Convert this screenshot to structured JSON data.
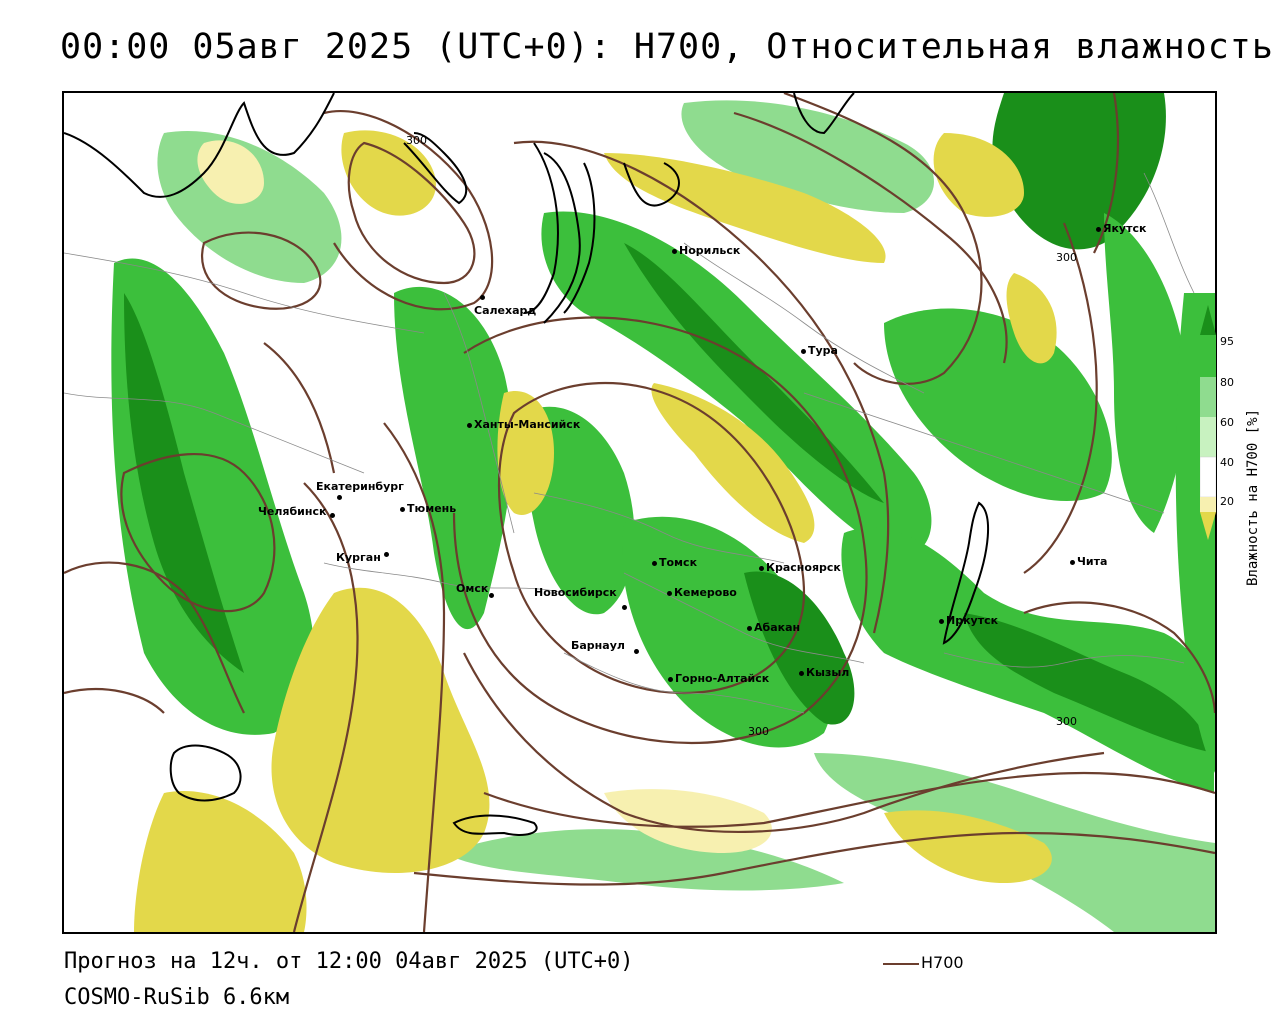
{
  "title": "00:00 05авг 2025 (UTC+0): Н700, Относительная влажность",
  "forecast_text": "Прогноз на 12ч. от 12:00 04авг 2025 (UTC+0)",
  "model_text": "COSMO-RuSib 6.6км",
  "line_legend_label": "Н700",
  "legend": {
    "title": "Влажность на Н700 [%]",
    "ticks": [
      "95",
      "80",
      "60",
      "40",
      "20"
    ],
    "colors": [
      "#1a8f1a",
      "#3cbf3c",
      "#8fdc8f",
      "#c8f2c0",
      "#ffffff",
      "#f7f0b0",
      "#e3d84a",
      "#c9b820"
    ]
  },
  "isoline_labels": [
    "300",
    "300",
    "300",
    "300"
  ],
  "cities": [
    {
      "name": "Якутск"
    },
    {
      "name": "Норильск"
    },
    {
      "name": "Салехард"
    },
    {
      "name": "Тура"
    },
    {
      "name": "Ханты-Мансийск"
    },
    {
      "name": "Екатеринбург"
    },
    {
      "name": "Тюмень"
    },
    {
      "name": "Челябинск"
    },
    {
      "name": "Курган"
    },
    {
      "name": "Омск"
    },
    {
      "name": "Новосибирск"
    },
    {
      "name": "Томск"
    },
    {
      "name": "Кемерово"
    },
    {
      "name": "Красноярск"
    },
    {
      "name": "Абакан"
    },
    {
      "name": "Барнаул"
    },
    {
      "name": "Горно-Алтайск"
    },
    {
      "name": "Кызыл"
    },
    {
      "name": "Иркутск"
    },
    {
      "name": "Чита"
    }
  ]
}
